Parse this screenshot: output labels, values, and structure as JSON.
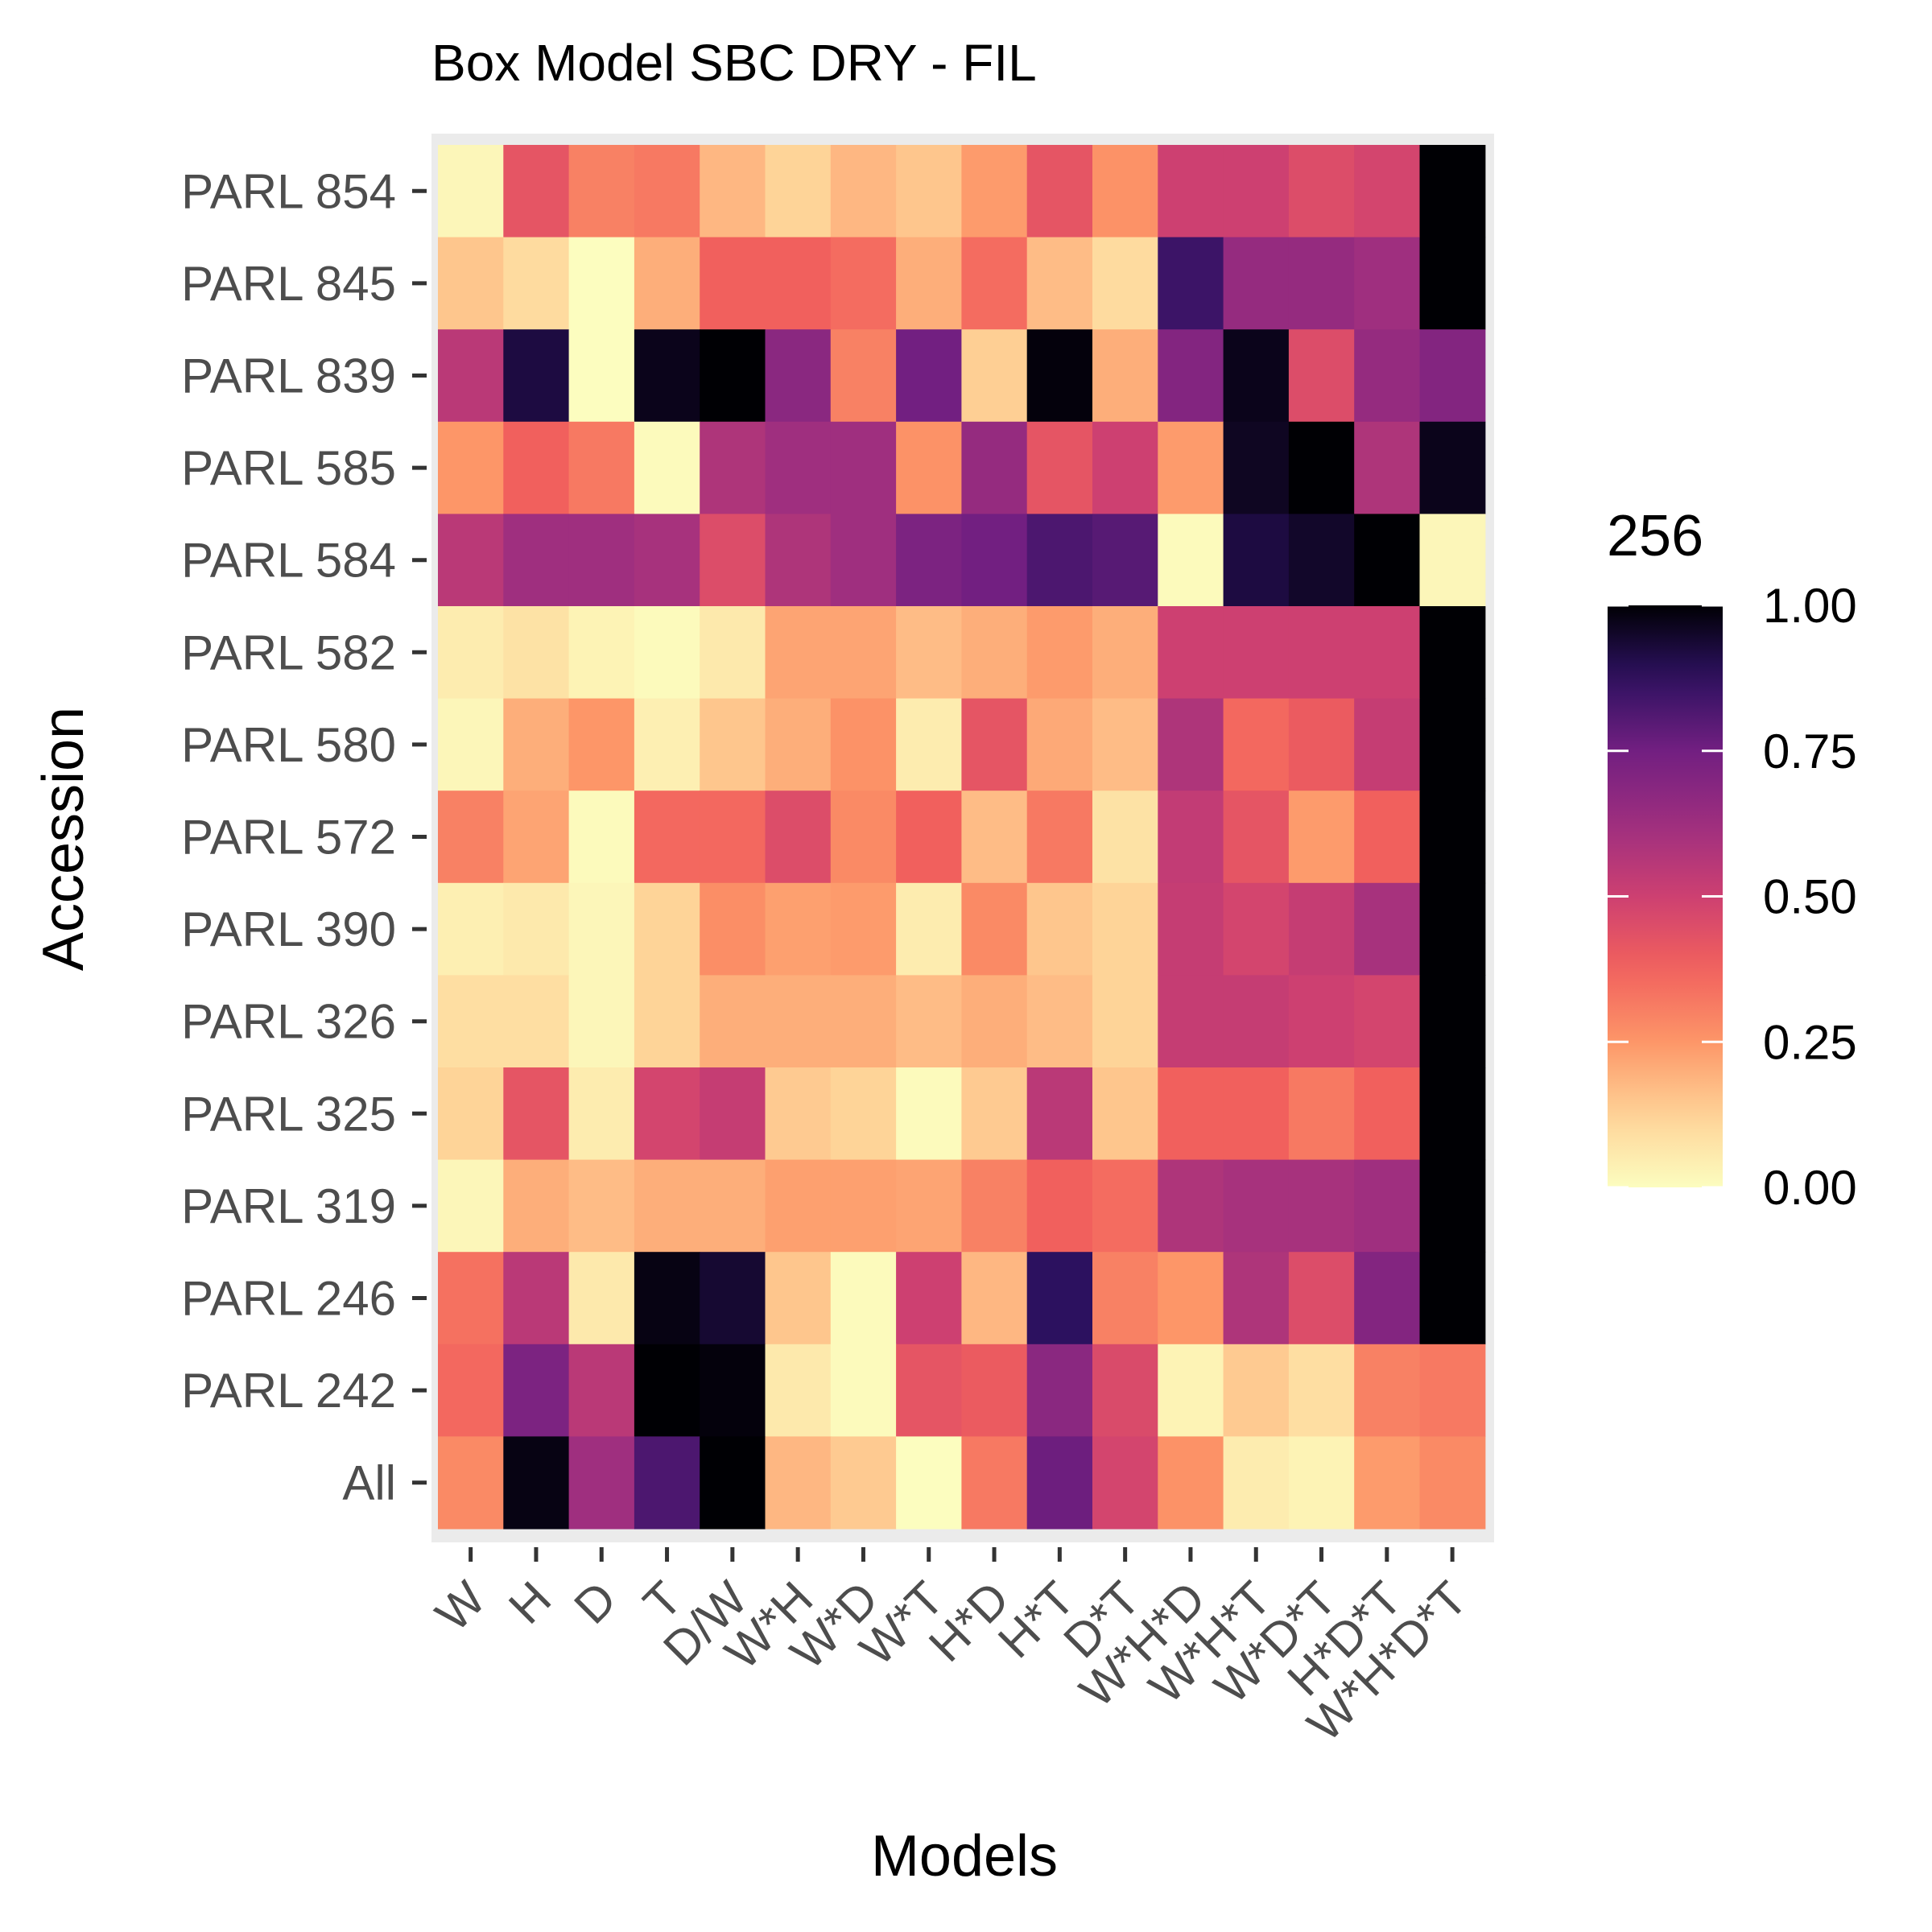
{
  "chart_data": {
    "type": "heatmap",
    "title": "Box Model SBC DRY - FIL",
    "xlabel": "Models",
    "ylabel": "Accession",
    "x_categories": [
      "W",
      "H",
      "D",
      "T",
      "D/W",
      "W*H",
      "W*D",
      "W*T",
      "H*D",
      "H*T",
      "D*T",
      "W*H*D",
      "W*H*T",
      "W*D*T",
      "H*D*T",
      "W*H*D*T"
    ],
    "y_categories": [
      "PARL 854",
      "PARL 845",
      "PARL 839",
      "PARL 585",
      "PARL 584",
      "PARL 582",
      "PARL 580",
      "PARL 572",
      "PARL 390",
      "PARL 326",
      "PARL 325",
      "PARL 319",
      "PARL 246",
      "PARL 242",
      "All"
    ],
    "values": [
      [
        0.02,
        0.42,
        0.3,
        0.32,
        0.18,
        0.12,
        0.18,
        0.15,
        0.24,
        0.42,
        0.26,
        0.5,
        0.5,
        0.45,
        0.48,
        1.0
      ],
      [
        0.15,
        0.1,
        0.0,
        0.2,
        0.38,
        0.38,
        0.35,
        0.2,
        0.35,
        0.17,
        0.1,
        0.85,
        0.65,
        0.65,
        0.62,
        1.0
      ],
      [
        0.55,
        0.92,
        0.0,
        0.97,
        1.0,
        0.68,
        0.3,
        0.75,
        0.13,
        0.99,
        0.2,
        0.7,
        0.97,
        0.45,
        0.65,
        0.7
      ],
      [
        0.25,
        0.38,
        0.32,
        0.01,
        0.58,
        0.62,
        0.62,
        0.26,
        0.65,
        0.42,
        0.5,
        0.24,
        0.96,
        1.0,
        0.58,
        0.97
      ],
      [
        0.55,
        0.62,
        0.62,
        0.6,
        0.45,
        0.58,
        0.62,
        0.72,
        0.75,
        0.82,
        0.8,
        0.01,
        0.92,
        0.95,
        1.0,
        0.02
      ],
      [
        0.05,
        0.08,
        0.03,
        0.01,
        0.06,
        0.22,
        0.22,
        0.17,
        0.2,
        0.24,
        0.2,
        0.5,
        0.5,
        0.5,
        0.5,
        1.0
      ],
      [
        0.02,
        0.2,
        0.25,
        0.04,
        0.15,
        0.2,
        0.26,
        0.05,
        0.42,
        0.21,
        0.17,
        0.58,
        0.36,
        0.4,
        0.52,
        1.0
      ],
      [
        0.3,
        0.22,
        0.01,
        0.36,
        0.36,
        0.45,
        0.28,
        0.38,
        0.17,
        0.32,
        0.08,
        0.53,
        0.42,
        0.24,
        0.38,
        1.0
      ],
      [
        0.04,
        0.06,
        0.02,
        0.12,
        0.27,
        0.23,
        0.24,
        0.05,
        0.28,
        0.15,
        0.12,
        0.52,
        0.48,
        0.52,
        0.6,
        1.0
      ],
      [
        0.09,
        0.09,
        0.02,
        0.12,
        0.2,
        0.2,
        0.2,
        0.17,
        0.2,
        0.17,
        0.12,
        0.52,
        0.52,
        0.5,
        0.48,
        1.0
      ],
      [
        0.12,
        0.42,
        0.05,
        0.48,
        0.52,
        0.14,
        0.12,
        0.01,
        0.14,
        0.55,
        0.15,
        0.38,
        0.38,
        0.32,
        0.38,
        1.0
      ],
      [
        0.02,
        0.2,
        0.17,
        0.2,
        0.2,
        0.23,
        0.23,
        0.22,
        0.3,
        0.38,
        0.35,
        0.58,
        0.6,
        0.6,
        0.62,
        1.0
      ],
      [
        0.34,
        0.55,
        0.06,
        0.98,
        0.94,
        0.15,
        0.01,
        0.5,
        0.18,
        0.88,
        0.3,
        0.25,
        0.58,
        0.45,
        0.7,
        1.0
      ],
      [
        0.36,
        0.72,
        0.55,
        1.0,
        0.99,
        0.06,
        0.01,
        0.42,
        0.4,
        0.68,
        0.46,
        0.03,
        0.14,
        0.09,
        0.3,
        0.32
      ],
      [
        0.28,
        0.98,
        0.62,
        0.82,
        1.0,
        0.18,
        0.14,
        0.0,
        0.32,
        0.76,
        0.48,
        0.26,
        0.05,
        0.03,
        0.24,
        0.28
      ]
    ],
    "legend": {
      "title": "256",
      "position": "right",
      "range": [
        0,
        1
      ],
      "ticks": [
        "1.00",
        "0.75",
        "0.50",
        "0.25",
        "0.00"
      ],
      "palette": "magma-reversed"
    },
    "colors": {
      "low": "#fcfdbf",
      "high": "#000004",
      "panel_background": "#ebebeb"
    }
  }
}
